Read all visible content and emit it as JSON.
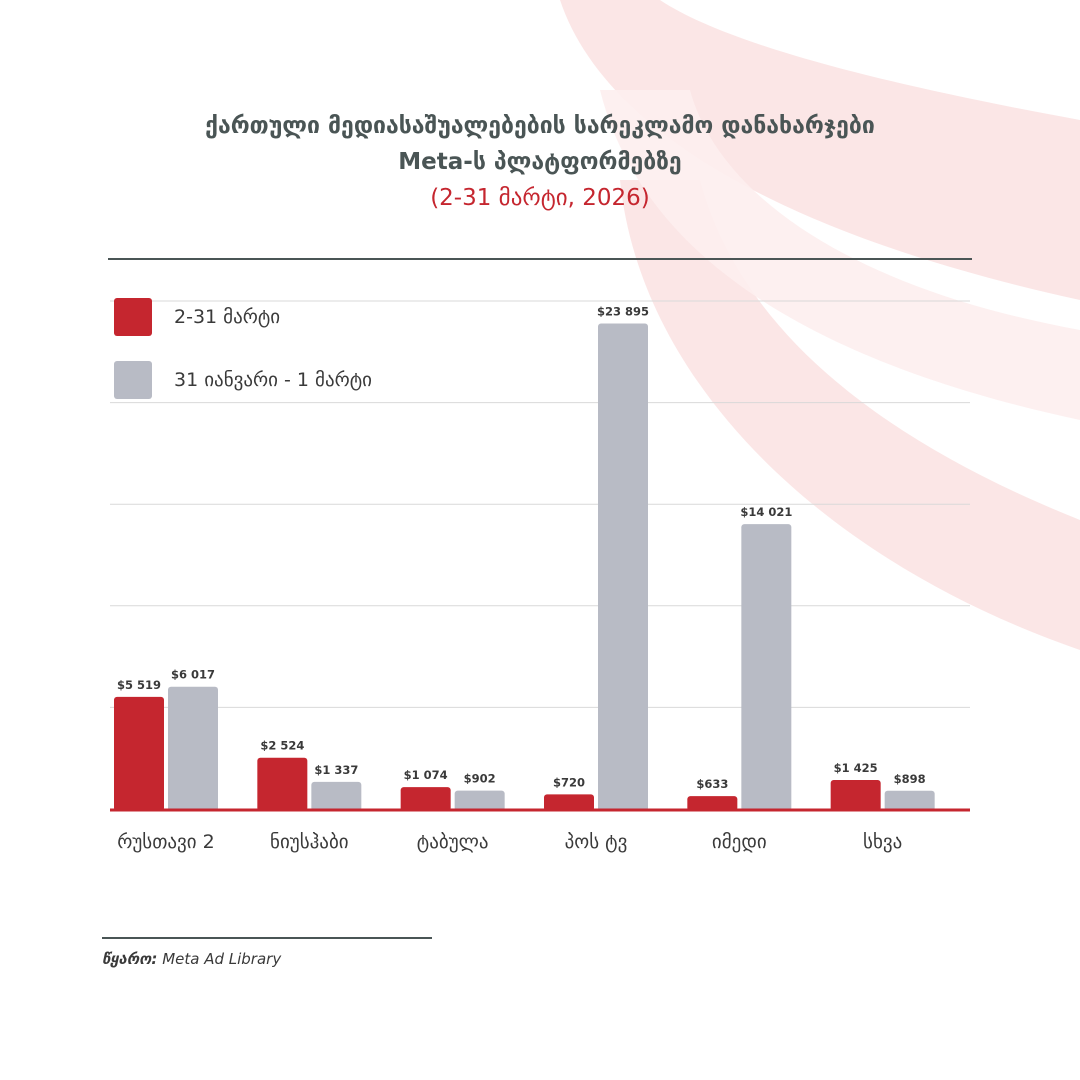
{
  "title": {
    "line1": "ქართული მედიასაშუალებების სარეკლამო დანახარჯები",
    "line2": "Meta-ს პლატფორმებზე",
    "period": "(2-31 მარტი, 2026)"
  },
  "colors": {
    "current": "#c5262f",
    "previous": "#b8bbc5",
    "title": "#4a5555",
    "gridline": "#d9d9d9",
    "background_swoosh": "#fbe3e3"
  },
  "legend": {
    "placement": "top-left",
    "items": [
      {
        "label": "2-31 მარტი",
        "color": "#c5262f"
      },
      {
        "label": "31 იანვარი - 1 მარტი",
        "color": "#b8bbc5"
      }
    ]
  },
  "chart_data": {
    "type": "bar",
    "categories": [
      "რუსთავი 2",
      "ნიუსჰაბი",
      "ტაბულა",
      "პოს ტვ",
      "იმედი",
      "სხვა"
    ],
    "series": [
      {
        "name": "2-31 მარტი",
        "values": [
          5519,
          2524,
          1074,
          720,
          633,
          1425
        ],
        "labels": [
          "$5 519",
          "$2 524",
          "$1 074",
          "$720",
          "$633",
          "$1 425"
        ]
      },
      {
        "name": "31 იანვარი - 1 მარტი",
        "values": [
          6017,
          1337,
          902,
          23895,
          14021,
          898
        ],
        "labels": [
          "$6 017",
          "$1 337",
          "$902",
          "$23 895",
          "$14 021",
          "$898"
        ]
      }
    ],
    "ylim": [
      0,
      25000
    ],
    "gridlines": [
      5000,
      10000,
      15000,
      20000,
      25000
    ],
    "grid": true
  },
  "source": {
    "label": "წყარო:",
    "text": "Meta Ad Library"
  }
}
